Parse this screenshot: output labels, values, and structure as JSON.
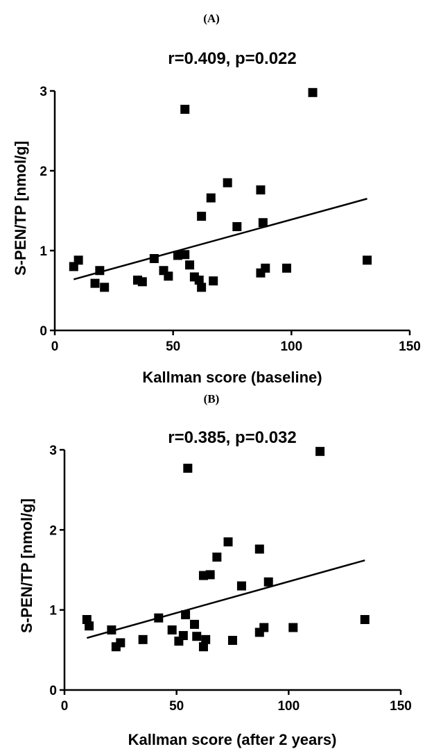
{
  "chart_data": [
    {
      "type": "scatter",
      "panel_label": "(A)",
      "title": "r=0.409, p=0.022",
      "xlabel": "Kallman score (baseline)",
      "ylabel": "S-PEN/TP [nmol/g]",
      "xlim": [
        0,
        150
      ],
      "ylim": [
        0,
        3
      ],
      "xticks": [
        0,
        50,
        100,
        150
      ],
      "yticks": [
        0,
        1,
        2,
        3
      ],
      "grid": false,
      "legend": "none",
      "marker": "square",
      "points": [
        {
          "x": 8,
          "y": 0.8
        },
        {
          "x": 10,
          "y": 0.88
        },
        {
          "x": 17,
          "y": 0.59
        },
        {
          "x": 19,
          "y": 0.75
        },
        {
          "x": 21,
          "y": 0.54
        },
        {
          "x": 35,
          "y": 0.63
        },
        {
          "x": 37,
          "y": 0.61
        },
        {
          "x": 42,
          "y": 0.9
        },
        {
          "x": 46,
          "y": 0.75
        },
        {
          "x": 48,
          "y": 0.68
        },
        {
          "x": 52,
          "y": 0.94
        },
        {
          "x": 55,
          "y": 2.77
        },
        {
          "x": 55,
          "y": 0.95
        },
        {
          "x": 57,
          "y": 0.82
        },
        {
          "x": 59,
          "y": 0.67
        },
        {
          "x": 61,
          "y": 0.63
        },
        {
          "x": 62,
          "y": 0.54
        },
        {
          "x": 62,
          "y": 1.43
        },
        {
          "x": 66,
          "y": 1.66
        },
        {
          "x": 67,
          "y": 0.62
        },
        {
          "x": 73,
          "y": 1.85
        },
        {
          "x": 77,
          "y": 1.3
        },
        {
          "x": 87,
          "y": 1.76
        },
        {
          "x": 87,
          "y": 0.72
        },
        {
          "x": 88,
          "y": 1.35
        },
        {
          "x": 89,
          "y": 0.78
        },
        {
          "x": 98,
          "y": 0.78
        },
        {
          "x": 109,
          "y": 2.98
        },
        {
          "x": 132,
          "y": 0.88
        }
      ],
      "fit_line": {
        "x": [
          8,
          132
        ],
        "y": [
          0.64,
          1.65
        ]
      }
    },
    {
      "type": "scatter",
      "panel_label": "(B)",
      "title": "r=0.385, p=0.032",
      "xlabel": "Kallman score (after 2 years)",
      "ylabel": "S-PEN/TP [nmol/g]",
      "xlim": [
        0,
        150
      ],
      "ylim": [
        0,
        3
      ],
      "xticks": [
        0,
        50,
        100,
        150
      ],
      "yticks": [
        0,
        1,
        2,
        3
      ],
      "grid": false,
      "legend": "none",
      "marker": "square",
      "points": [
        {
          "x": 10,
          "y": 0.88
        },
        {
          "x": 11,
          "y": 0.8
        },
        {
          "x": 21,
          "y": 0.75
        },
        {
          "x": 23,
          "y": 0.54
        },
        {
          "x": 25,
          "y": 0.59
        },
        {
          "x": 35,
          "y": 0.63
        },
        {
          "x": 42,
          "y": 0.9
        },
        {
          "x": 48,
          "y": 0.75
        },
        {
          "x": 51,
          "y": 0.61
        },
        {
          "x": 53,
          "y": 0.68
        },
        {
          "x": 54,
          "y": 0.94
        },
        {
          "x": 55,
          "y": 2.77
        },
        {
          "x": 58,
          "y": 0.82
        },
        {
          "x": 59,
          "y": 0.67
        },
        {
          "x": 62,
          "y": 0.54
        },
        {
          "x": 62,
          "y": 1.43
        },
        {
          "x": 63,
          "y": 0.63
        },
        {
          "x": 65,
          "y": 1.44
        },
        {
          "x": 68,
          "y": 1.66
        },
        {
          "x": 73,
          "y": 1.85
        },
        {
          "x": 75,
          "y": 0.62
        },
        {
          "x": 79,
          "y": 1.3
        },
        {
          "x": 87,
          "y": 1.76
        },
        {
          "x": 87,
          "y": 0.72
        },
        {
          "x": 89,
          "y": 0.78
        },
        {
          "x": 91,
          "y": 1.35
        },
        {
          "x": 102,
          "y": 0.78
        },
        {
          "x": 114,
          "y": 2.98
        },
        {
          "x": 134,
          "y": 0.88
        }
      ],
      "fit_line": {
        "x": [
          10,
          134
        ],
        "y": [
          0.65,
          1.62
        ]
      }
    }
  ]
}
